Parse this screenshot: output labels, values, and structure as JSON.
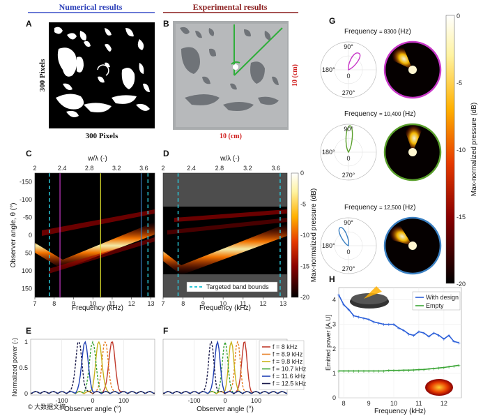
{
  "panels": {
    "A": {
      "label": "A",
      "title": "Numerical results",
      "xlabel": "300 Pixels",
      "ylabel": "300 Pixels"
    },
    "B": {
      "label": "B",
      "title": "Experimental results",
      "xdim": "10 (cm)",
      "ydim": "10 (cm)"
    },
    "C": {
      "label": "C"
    },
    "D": {
      "label": "D",
      "legend": "Targeted band bounds"
    },
    "E": {
      "label": "E"
    },
    "F": {
      "label": "F"
    },
    "G": {
      "label": "G"
    },
    "H": {
      "label": "H"
    }
  },
  "heatmap": {
    "top_axis_label": "w/λ (·)",
    "top_ticks": [
      "2",
      "2.4",
      "2.8",
      "3.2",
      "3.6"
    ],
    "xlabel": "Frequency (kHz)",
    "xticks": [
      "7",
      "8",
      "9",
      "10",
      "11",
      "12",
      "13"
    ],
    "ylabel": "Observer angle, θ (°)",
    "yticks": [
      "-150",
      "-100",
      "-50",
      "0",
      "50",
      "100",
      "150"
    ],
    "colorbar_label": "Max-normalized pressure (dB)",
    "colorbar_ticks": [
      "0",
      "-5",
      "-10",
      "-15",
      "-20"
    ],
    "band_bounds_khz": [
      7.75,
      12.85
    ],
    "highlight_lines_khz": [
      8.3,
      10.4,
      12.5
    ]
  },
  "cuts": {
    "ylabel": "Normalized power (-)",
    "xlabel": "Observer angle (°)",
    "yticks": [
      "0",
      "0.5",
      "1"
    ],
    "xticks": [
      "-100",
      "0",
      "100"
    ],
    "legend": [
      {
        "label": "f = 8 kHz",
        "color": "#c0392b"
      },
      {
        "label": "f = 8.9 kHz",
        "color": "#e67e22"
      },
      {
        "label": "f = 9.8 kHz",
        "color": "#c9b21d"
      },
      {
        "label": "f = 10.7 kHz",
        "color": "#3aa535"
      },
      {
        "label": "f = 11.6 kHz",
        "color": "#1f3fb4"
      },
      {
        "label": "f = 12.5 kHz",
        "color": "#1a1a4a"
      }
    ]
  },
  "polar": {
    "angle_labels": [
      "90°",
      "180°",
      "0",
      "270°"
    ],
    "cases": [
      {
        "prefix": "Frequency",
        "value": "= 8300",
        "unit": "(Hz)",
        "color": "#c838c8"
      },
      {
        "prefix": "Frequency",
        "value": "= 10,400",
        "unit": "(Hz)",
        "color": "#5aa02c"
      },
      {
        "prefix": "Frequency",
        "value": "= 12,500",
        "unit": "(Hz)",
        "color": "#3a7fc1"
      }
    ],
    "colorbar_label": "Max-normalized pressure (dB)",
    "colorbar_ticks": [
      "0",
      "-5",
      "-10",
      "-15",
      "-20"
    ]
  },
  "chart_data": [
    {
      "type": "line",
      "title": "Emitted power",
      "xlabel": "Frequency (kHz)",
      "ylabel": "Emitted power [A.U]",
      "xlim": [
        7.8,
        12.7
      ],
      "ylim": [
        0,
        4.5
      ],
      "xticks": [
        "8",
        "9",
        "10",
        "11",
        "12"
      ],
      "yticks": [
        "0",
        "1",
        "2",
        "3",
        "4"
      ],
      "series": [
        {
          "name": "With design",
          "color": "#2b5fd9",
          "x": [
            7.8,
            8.0,
            8.2,
            8.4,
            8.6,
            8.8,
            9.0,
            9.2,
            9.4,
            9.6,
            9.8,
            10.0,
            10.2,
            10.4,
            10.6,
            10.8,
            11.0,
            11.2,
            11.4,
            11.6,
            11.8,
            12.0,
            12.2,
            12.4,
            12.6
          ],
          "values": [
            4.2,
            3.8,
            3.6,
            3.35,
            3.3,
            3.25,
            3.2,
            3.1,
            3.05,
            3.0,
            3.0,
            3.0,
            2.85,
            2.75,
            2.6,
            2.55,
            2.7,
            2.65,
            2.5,
            2.65,
            2.55,
            2.4,
            2.55,
            2.3,
            2.25
          ]
        },
        {
          "name": "Empty",
          "color": "#3aa535",
          "x": [
            7.8,
            8.0,
            8.2,
            8.4,
            8.6,
            8.8,
            9.0,
            9.2,
            9.4,
            9.6,
            9.8,
            10.0,
            10.2,
            10.4,
            10.6,
            10.8,
            11.0,
            11.2,
            11.4,
            11.6,
            11.8,
            12.0,
            12.2,
            12.4,
            12.6
          ],
          "values": [
            1.1,
            1.1,
            1.1,
            1.1,
            1.1,
            1.1,
            1.1,
            1.1,
            1.1,
            1.1,
            1.12,
            1.12,
            1.12,
            1.13,
            1.13,
            1.14,
            1.15,
            1.16,
            1.18,
            1.2,
            1.22,
            1.24,
            1.27,
            1.3,
            1.33
          ]
        }
      ]
    }
  ],
  "watermark": "© 大数据文摘"
}
